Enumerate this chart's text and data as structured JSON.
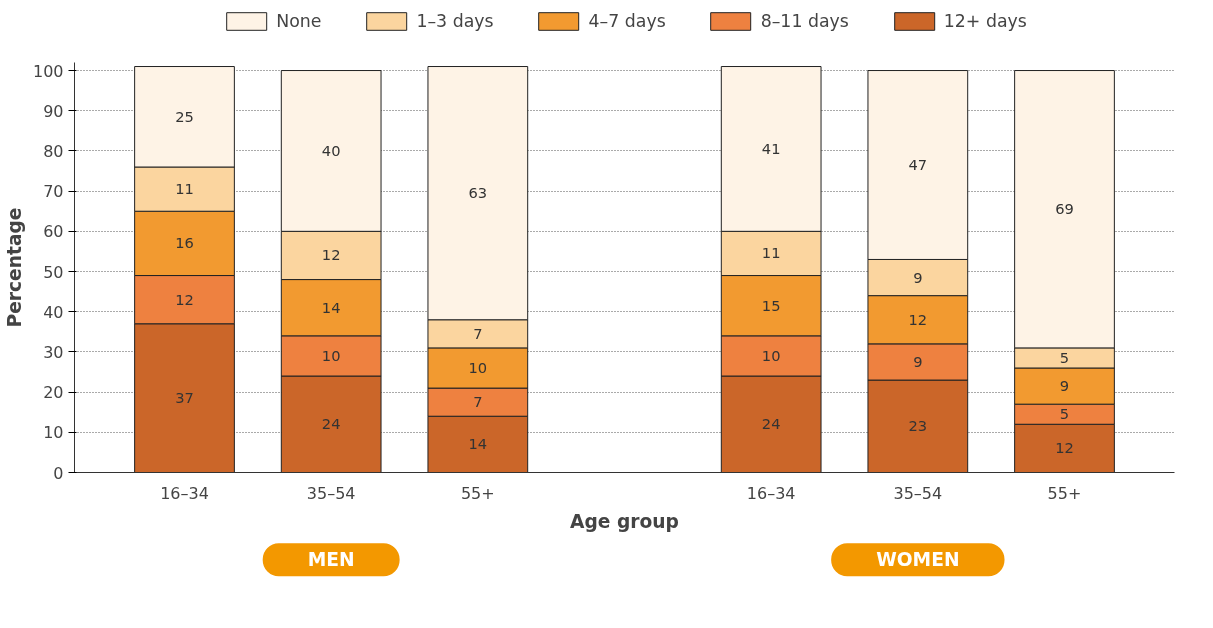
{
  "chart_data": {
    "type": "bar",
    "stacked": true,
    "xlabel": "Age group",
    "ylabel": "Percentage",
    "categories": [
      "16–34",
      "35–54",
      "55+",
      null,
      "16–34",
      "35–54",
      "55+"
    ],
    "series": [
      {
        "name": "12+ days",
        "color": "#cb6629",
        "values": [
          37,
          24,
          14,
          null,
          24,
          23,
          12
        ]
      },
      {
        "name": "8–11 days",
        "color": "#ee8140",
        "values": [
          12,
          10,
          7,
          null,
          10,
          9,
          5
        ]
      },
      {
        "name": "4–7 days",
        "color": "#f29a30",
        "values": [
          16,
          14,
          10,
          null,
          15,
          12,
          9
        ]
      },
      {
        "name": "1–3 days",
        "color": "#fbd59f",
        "values": [
          11,
          12,
          7,
          null,
          11,
          9,
          5
        ]
      },
      {
        "name": "None",
        "color": "#fef3e6",
        "values": [
          25,
          40,
          63,
          null,
          41,
          47,
          69
        ]
      }
    ],
    "ylim": [
      0,
      102
    ],
    "yticks": [
      0,
      10,
      20,
      30,
      40,
      50,
      60,
      70,
      80,
      90,
      100
    ],
    "grid": "y",
    "legend": "top",
    "data_labels": true,
    "annotations": [
      "MEN",
      "WOMEN"
    ]
  }
}
